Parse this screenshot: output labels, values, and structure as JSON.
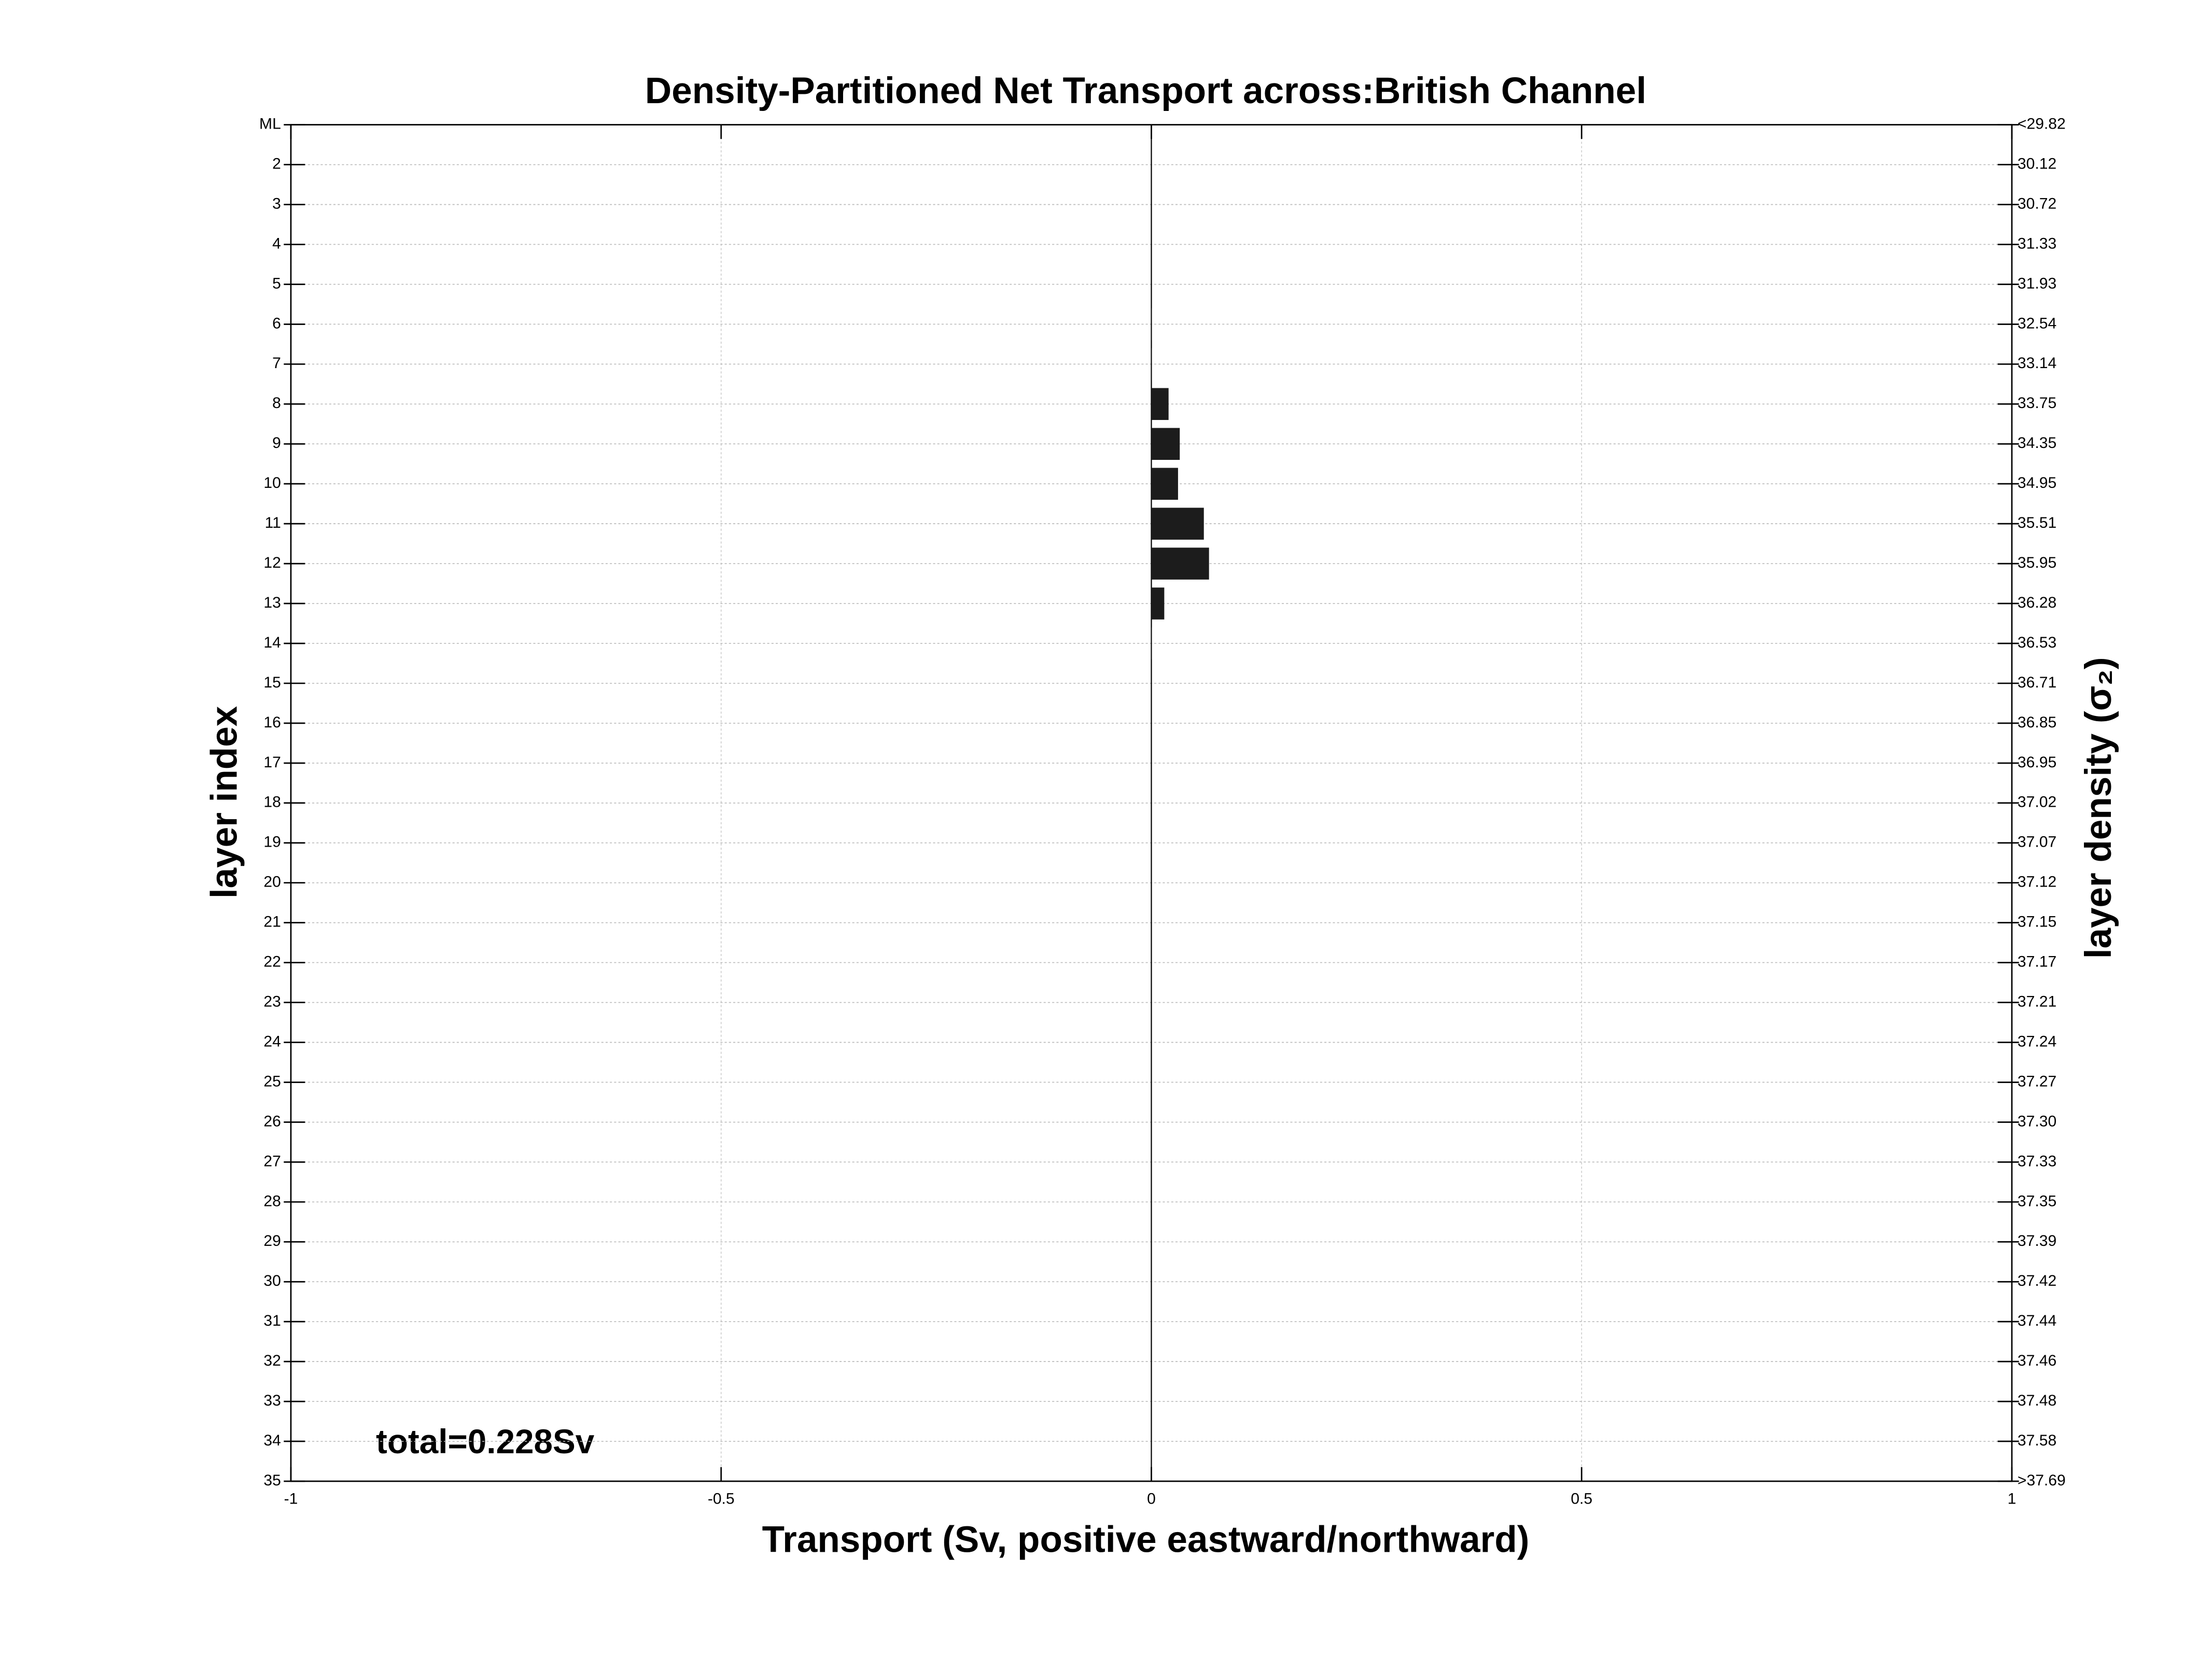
{
  "chart_data": {
    "type": "hbar",
    "title": "Density-Partitioned Net Transport across:British Channel",
    "xlabel": "Transport (Sv, positive eastward/northward)",
    "ylabel": "layer index",
    "y2label": "layer density (σ₂)",
    "annotation": "total=0.228Sv",
    "categories": [
      "ML",
      "2",
      "3",
      "4",
      "5",
      "6",
      "7",
      "8",
      "9",
      "10",
      "11",
      "12",
      "13",
      "14",
      "15",
      "16",
      "17",
      "18",
      "19",
      "20",
      "21",
      "22",
      "23",
      "24",
      "25",
      "26",
      "27",
      "28",
      "29",
      "30",
      "31",
      "32",
      "33",
      "34",
      "35"
    ],
    "y2_categories": [
      "<29.82",
      "30.12",
      "30.72",
      "31.33",
      "31.93",
      "32.54",
      "33.14",
      "33.75",
      "34.35",
      "34.95",
      "35.51",
      "35.95",
      "36.28",
      "36.53",
      "36.71",
      "36.85",
      "36.95",
      "37.02",
      "37.07",
      "37.12",
      "37.15",
      "37.17",
      "37.21",
      "37.24",
      "37.27",
      "37.30",
      "37.33",
      "37.35",
      "37.39",
      "37.42",
      "37.44",
      "37.46",
      "37.48",
      "37.58",
      ">37.69"
    ],
    "values": [
      0,
      0,
      0,
      0,
      0,
      0.0005,
      0.0005,
      0.02,
      0.033,
      0.031,
      0.061,
      0.067,
      0.015,
      0.0005,
      0,
      0,
      0,
      0,
      0,
      0,
      0,
      0,
      0,
      0,
      0,
      0,
      0,
      0,
      0,
      0,
      0,
      0,
      0,
      0,
      0
    ],
    "color": "#1c1c1c",
    "xlim": [
      -1,
      1
    ],
    "xticks": [
      -1,
      -0.5,
      0,
      0.5,
      1
    ],
    "grid": true
  }
}
